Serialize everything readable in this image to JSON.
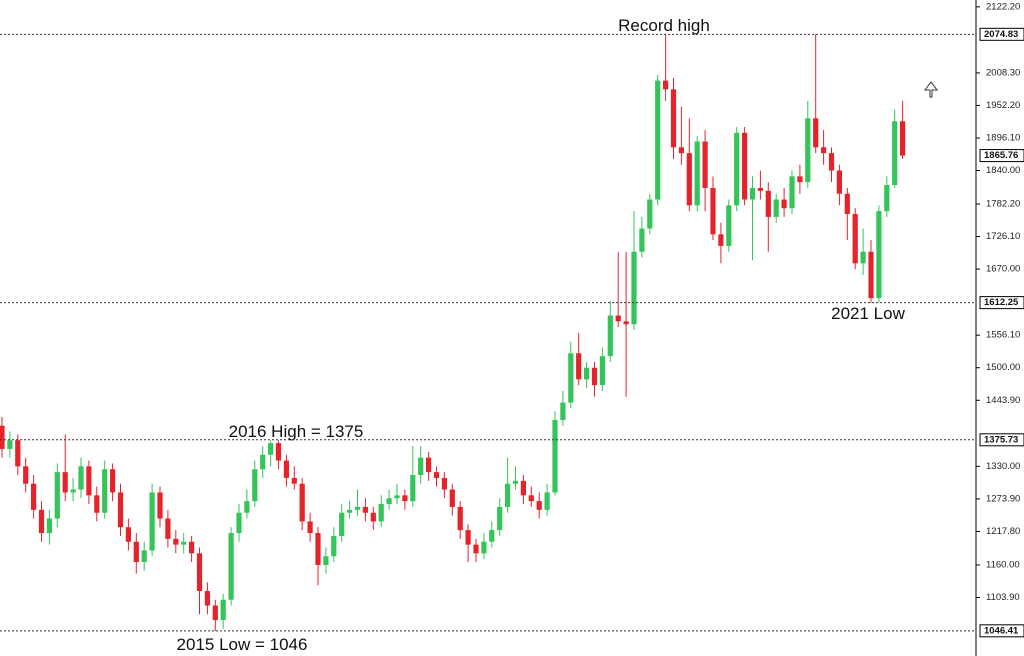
{
  "chart_data": {
    "type": "candlestick",
    "up_color": "#35c459",
    "down_color": "#e5232b",
    "ylim": [
      1003,
      2134
    ],
    "yticks": [
      {
        "value": 2122.2,
        "label": "2122.20"
      },
      {
        "value": 2008.3,
        "label": "2008.30"
      },
      {
        "value": 1952.2,
        "label": "1952.20"
      },
      {
        "value": 1896.1,
        "label": "1896.10"
      },
      {
        "value": 1840,
        "label": "1840.00"
      },
      {
        "value": 1782.2,
        "label": "1782.20"
      },
      {
        "value": 1726.1,
        "label": "1726.10"
      },
      {
        "value": 1670,
        "label": "1670.00"
      },
      {
        "value": 1556.1,
        "label": "1556.10"
      },
      {
        "value": 1500,
        "label": "1500.00"
      },
      {
        "value": 1443.9,
        "label": "1443.90"
      },
      {
        "value": 1330,
        "label": "1330.00"
      },
      {
        "value": 1273.9,
        "label": "1273.90"
      },
      {
        "value": 1217.8,
        "label": "1217.80"
      },
      {
        "value": 1160,
        "label": "1160.00"
      },
      {
        "value": 1103.9,
        "label": "1103.90"
      }
    ],
    "levels": [
      2074.83,
      1612.25,
      1375.73,
      1046.41
    ],
    "last_price": 1865.76,
    "annotations": [
      "Record high",
      "2021 Low",
      "2016 High = 1375",
      "2015 Low = 1046"
    ],
    "open": [
      1400,
      1360,
      1375,
      1330,
      1300,
      1255,
      1215,
      1240,
      1320,
      1285,
      1290,
      1330,
      1280,
      1250,
      1325,
      1285,
      1225,
      1200,
      1165,
      1185,
      1285,
      1240,
      1205,
      1195,
      1200,
      1180,
      1115,
      1090,
      1065,
      1100,
      1215,
      1250,
      1270,
      1325,
      1350,
      1370,
      1340,
      1310,
      1300,
      1235,
      1215,
      1160,
      1175,
      1210,
      1250,
      1255,
      1260,
      1250,
      1235,
      1265,
      1275,
      1280,
      1270,
      1315,
      1345,
      1320,
      1310,
      1290,
      1260,
      1220,
      1195,
      1180,
      1200,
      1220,
      1260,
      1300,
      1305,
      1280,
      1270,
      1255,
      1285,
      1410,
      1440,
      1525,
      1480,
      1500,
      1470,
      1520,
      1590,
      1580,
      1575,
      1700,
      1740,
      1790,
      1995,
      1980,
      1880,
      1870,
      1780,
      1890,
      1810,
      1730,
      1710,
      1780,
      1905,
      1790,
      1810,
      1805,
      1760,
      1790,
      1775,
      1830,
      1820,
      1930,
      1880,
      1870,
      1840,
      1800,
      1765,
      1680,
      1700,
      1620,
      1770,
      1815,
      1925
    ],
    "high": [
      1415,
      1390,
      1385,
      1345,
      1315,
      1270,
      1255,
      1335,
      1385,
      1310,
      1345,
      1340,
      1295,
      1340,
      1335,
      1300,
      1240,
      1215,
      1200,
      1300,
      1295,
      1255,
      1220,
      1215,
      1210,
      1190,
      1130,
      1100,
      1110,
      1225,
      1265,
      1290,
      1340,
      1365,
      1375,
      1375,
      1350,
      1330,
      1310,
      1250,
      1225,
      1190,
      1225,
      1265,
      1270,
      1290,
      1275,
      1260,
      1280,
      1290,
      1300,
      1290,
      1365,
      1365,
      1355,
      1330,
      1320,
      1300,
      1270,
      1230,
      1205,
      1215,
      1235,
      1275,
      1345,
      1330,
      1315,
      1295,
      1285,
      1300,
      1425,
      1460,
      1545,
      1560,
      1510,
      1510,
      1535,
      1615,
      1700,
      1700,
      1770,
      1760,
      1800,
      2005,
      2075,
      2000,
      1950,
      1930,
      1900,
      1910,
      1830,
      1750,
      1790,
      1915,
      1915,
      1830,
      1840,
      1820,
      1800,
      1810,
      1840,
      1850,
      1960,
      2075,
      1910,
      1880,
      1850,
      1810,
      1775,
      1740,
      1720,
      1780,
      1830,
      1945,
      1960
    ],
    "low": [
      1345,
      1345,
      1315,
      1285,
      1240,
      1200,
      1195,
      1225,
      1270,
      1270,
      1275,
      1265,
      1235,
      1240,
      1270,
      1210,
      1185,
      1145,
      1150,
      1175,
      1225,
      1190,
      1180,
      1180,
      1165,
      1075,
      1075,
      1046,
      1050,
      1090,
      1200,
      1240,
      1260,
      1310,
      1330,
      1325,
      1295,
      1290,
      1220,
      1200,
      1125,
      1145,
      1165,
      1200,
      1240,
      1245,
      1235,
      1220,
      1225,
      1255,
      1265,
      1255,
      1260,
      1300,
      1305,
      1295,
      1275,
      1245,
      1205,
      1165,
      1165,
      1170,
      1190,
      1210,
      1250,
      1290,
      1265,
      1260,
      1240,
      1245,
      1280,
      1400,
      1430,
      1470,
      1465,
      1450,
      1460,
      1510,
      1570,
      1450,
      1565,
      1690,
      1730,
      1780,
      1960,
      1860,
      1850,
      1770,
      1770,
      1770,
      1720,
      1680,
      1700,
      1770,
      1780,
      1685,
      1790,
      1700,
      1750,
      1760,
      1765,
      1800,
      1810,
      1870,
      1850,
      1820,
      1780,
      1720,
      1670,
      1660,
      1612,
      1612,
      1760,
      1810,
      1860
    ],
    "close": [
      1360,
      1375,
      1330,
      1300,
      1255,
      1215,
      1240,
      1320,
      1285,
      1290,
      1330,
      1280,
      1250,
      1325,
      1285,
      1225,
      1200,
      1165,
      1185,
      1285,
      1240,
      1205,
      1195,
      1200,
      1180,
      1115,
      1090,
      1065,
      1100,
      1215,
      1250,
      1270,
      1325,
      1350,
      1370,
      1340,
      1310,
      1300,
      1235,
      1215,
      1160,
      1175,
      1210,
      1250,
      1255,
      1260,
      1250,
      1235,
      1265,
      1275,
      1280,
      1270,
      1315,
      1345,
      1320,
      1310,
      1290,
      1260,
      1220,
      1195,
      1180,
      1200,
      1220,
      1260,
      1300,
      1305,
      1280,
      1270,
      1255,
      1285,
      1410,
      1440,
      1525,
      1480,
      1500,
      1470,
      1520,
      1590,
      1580,
      1575,
      1700,
      1740,
      1790,
      1995,
      1980,
      1880,
      1870,
      1780,
      1890,
      1810,
      1730,
      1710,
      1780,
      1905,
      1790,
      1810,
      1805,
      1760,
      1790,
      1775,
      1830,
      1820,
      1930,
      1880,
      1870,
      1840,
      1800,
      1765,
      1680,
      1700,
      1620,
      1770,
      1815,
      1925,
      1865.76
    ]
  }
}
